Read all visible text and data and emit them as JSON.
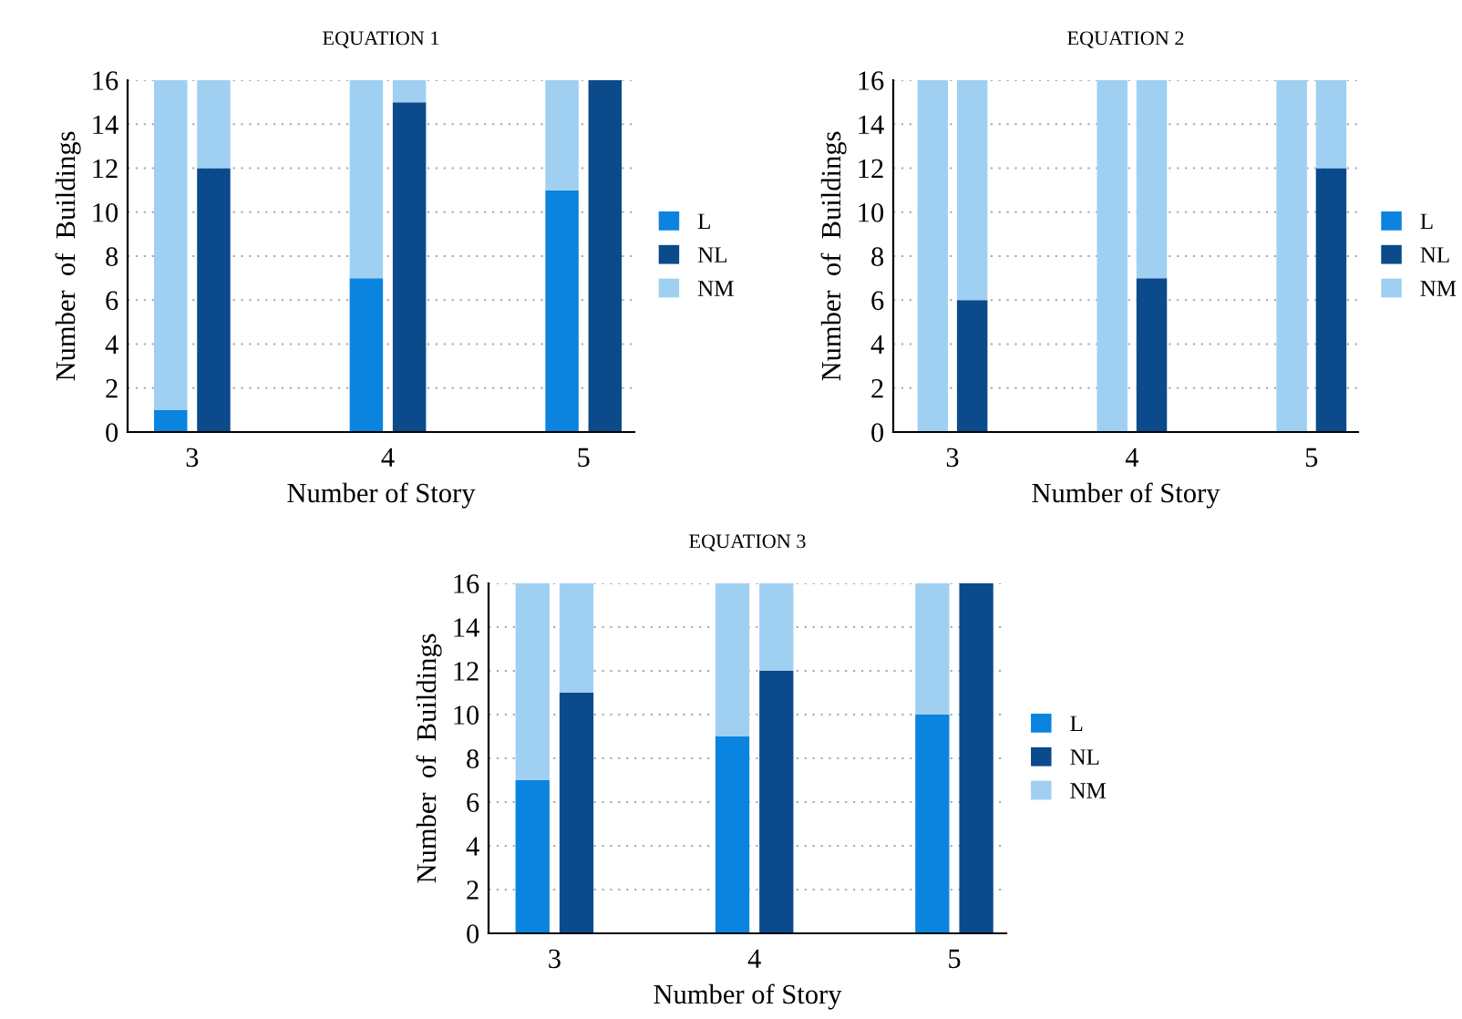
{
  "chart_data": [
    {
      "type": "bar",
      "title": "EQUATION 1",
      "xlabel": "Number of Story",
      "ylabel": "Number  of  Buildings",
      "stacked": true,
      "x": [
        2.89,
        3.11,
        3.89,
        4.11,
        4.89,
        5.11
      ],
      "xlim": [
        2.67,
        5.26
      ],
      "xticks": [
        3,
        4,
        5
      ],
      "ylim": [
        0,
        16
      ],
      "yticks": [
        0,
        2,
        4,
        6,
        8,
        10,
        12,
        14,
        16
      ],
      "grid": "y",
      "legend": "right",
      "series": [
        {
          "name": "L",
          "color": "#0a84de",
          "values": [
            1,
            0,
            7,
            0,
            11,
            0
          ]
        },
        {
          "name": "NL",
          "color": "#0b4a8b",
          "values": [
            0,
            12,
            0,
            15,
            0,
            16
          ]
        },
        {
          "name": "NM",
          "color": "#9fd0f2",
          "values": [
            15,
            4,
            9,
            1,
            5,
            0
          ]
        }
      ]
    },
    {
      "type": "bar",
      "title": "EQUATION 2",
      "xlabel": "Number of Story",
      "ylabel": "Number  of  Buildings",
      "stacked": true,
      "x": [
        2.89,
        3.11,
        3.89,
        4.11,
        4.89,
        5.11
      ],
      "xlim": [
        2.67,
        5.26
      ],
      "xticks": [
        3,
        4,
        5
      ],
      "ylim": [
        0,
        16
      ],
      "yticks": [
        0,
        2,
        4,
        6,
        8,
        10,
        12,
        14,
        16
      ],
      "grid": "y",
      "legend": "right",
      "series": [
        {
          "name": "L",
          "color": "#0a84de",
          "values": [
            0,
            0,
            0,
            0,
            0,
            0
          ]
        },
        {
          "name": "NL",
          "color": "#0b4a8b",
          "values": [
            0,
            6,
            0,
            7,
            0,
            12
          ]
        },
        {
          "name": "NM",
          "color": "#9fd0f2",
          "values": [
            16,
            10,
            16,
            9,
            16,
            4
          ]
        }
      ]
    },
    {
      "type": "bar",
      "title": "EQUATION 3",
      "xlabel": "Number of Story",
      "ylabel": "Number  of  Buildings",
      "stacked": true,
      "x": [
        2.89,
        3.11,
        3.89,
        4.11,
        4.89,
        5.11
      ],
      "xlim": [
        2.67,
        5.26
      ],
      "xticks": [
        3,
        4,
        5
      ],
      "ylim": [
        0,
        16
      ],
      "yticks": [
        0,
        2,
        4,
        6,
        8,
        10,
        12,
        14,
        16
      ],
      "grid": "y",
      "legend": "right",
      "series": [
        {
          "name": "L",
          "color": "#0a84de",
          "values": [
            7,
            0,
            9,
            0,
            10,
            0
          ]
        },
        {
          "name": "NL",
          "color": "#0b4a8b",
          "values": [
            0,
            11,
            0,
            12,
            0,
            16
          ]
        },
        {
          "name": "NM",
          "color": "#9fd0f2",
          "values": [
            9,
            5,
            7,
            4,
            6,
            0
          ]
        }
      ]
    }
  ]
}
